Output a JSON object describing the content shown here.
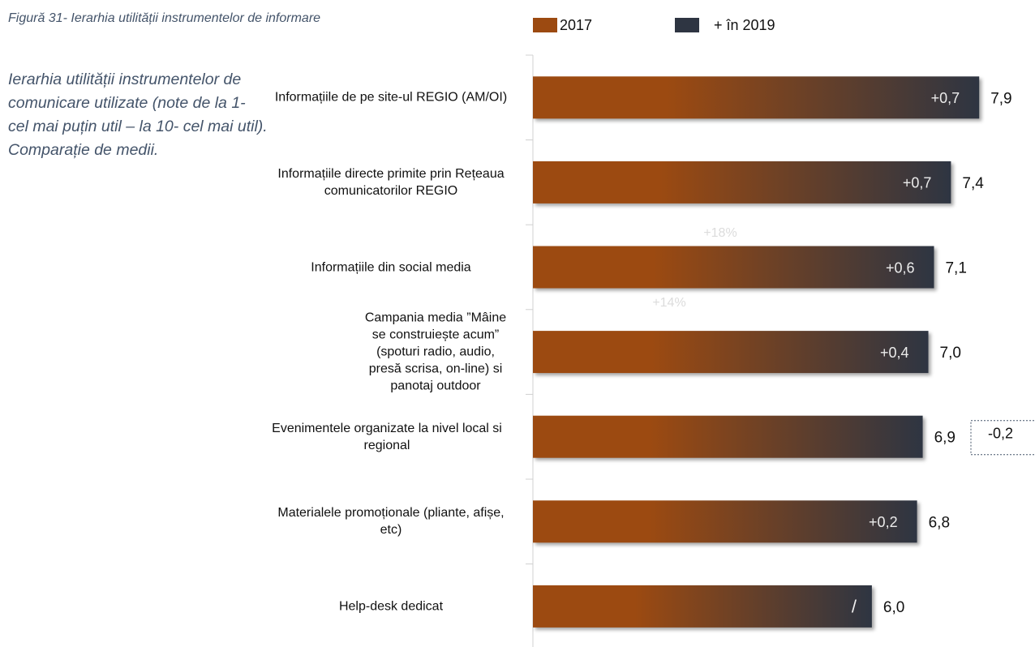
{
  "chart_data": {
    "type": "bar",
    "orientation": "horizontal",
    "title": "Figură 31- Ierarhia utilității instrumentelor de informare",
    "subtitle": "Ierarhia utilității instrumentelor de comunicare utilizate (note de la 1- cel mai puțin util – la 10- cel mai util). Comparație de medii.",
    "legend": [
      {
        "name": "2017",
        "color": "#9c4a11"
      },
      {
        "name": "+ în 2019",
        "color": "#2e3542"
      }
    ],
    "categories": [
      "Informațiile de pe site-ul REGIO (AM/OI)",
      "Informațiile directe primite prin Rețeaua comunicatorilor REGIO",
      "Informațiile din social media",
      "Campania media ”Mâine se construiește acum” (spoturi radio, audio, presă scrisa, on-line) si panotaj outdoor",
      "Evenimentele organizate la nivel local si regional",
      "Materialele promoționale (pliante, afișe, etc)",
      "Help-desk dedicat"
    ],
    "values": [
      7.9,
      7.4,
      7.1,
      7.0,
      6.9,
      6.8,
      6.0
    ],
    "value_labels": [
      "7,9",
      "7,4",
      "7,1",
      "7,0",
      "6,9",
      "6,8",
      "6,0"
    ],
    "change_labels": [
      "+0,7",
      "+0,7",
      "+0,6",
      "+0,4",
      "-0,2",
      "+0,2",
      "/"
    ],
    "annotations": [
      "+18%",
      "+14%"
    ],
    "xlim": [
      0,
      8.5
    ]
  }
}
